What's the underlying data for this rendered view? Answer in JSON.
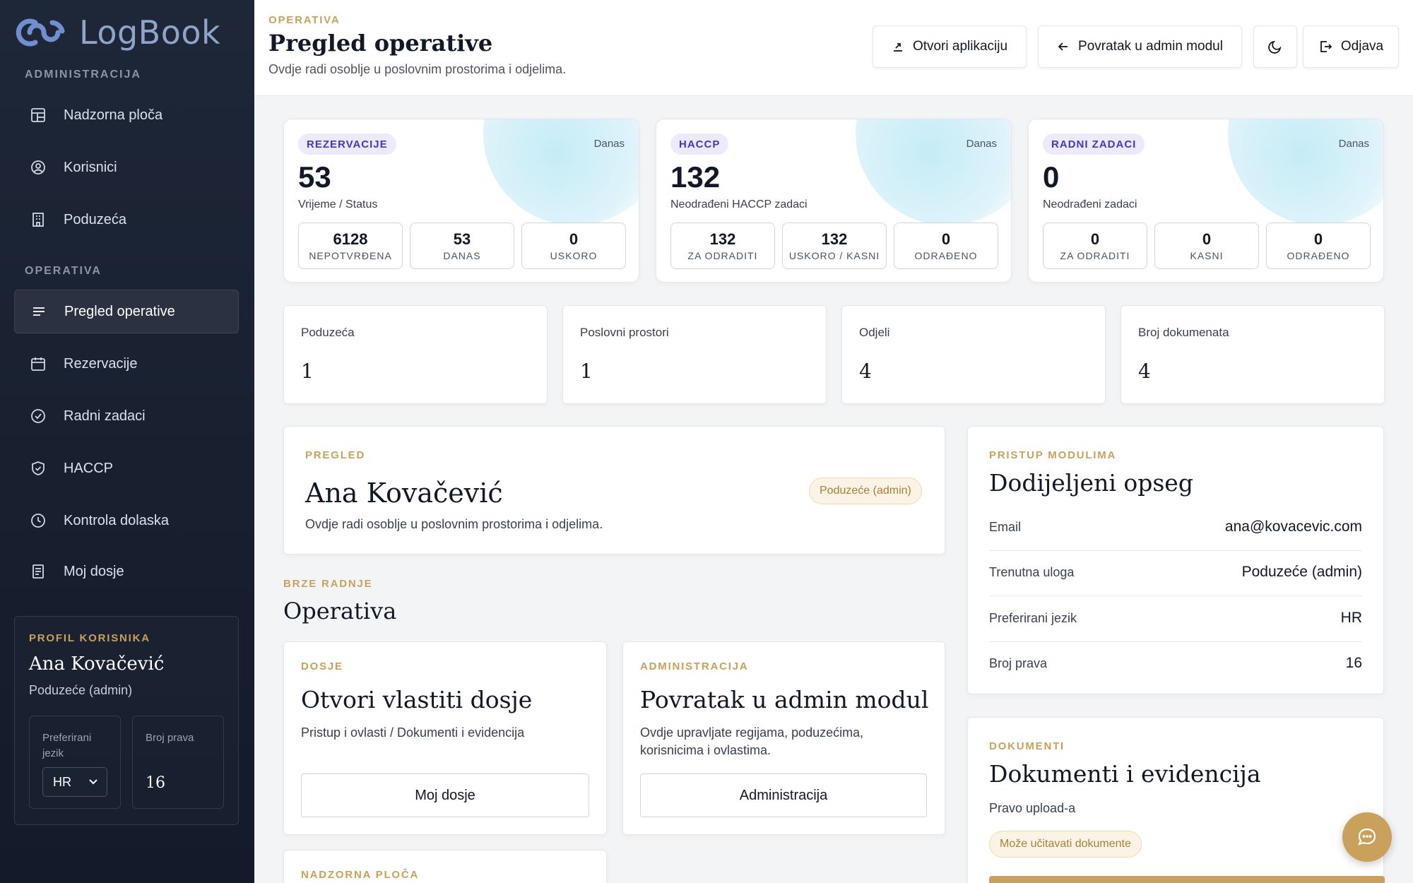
{
  "app": {
    "name": "LogBook"
  },
  "sidebar": {
    "section_admin": "ADMINISTRACIJA",
    "admin_items": [
      {
        "label": "Nadzorna ploča",
        "icon": "dashboard-icon"
      },
      {
        "label": "Korisnici",
        "icon": "user-circle-icon"
      },
      {
        "label": "Poduzeća",
        "icon": "building-icon"
      }
    ],
    "section_ops": "OPERATIVA",
    "ops_items": [
      {
        "label": "Pregled operative",
        "icon": "menu-lines-icon",
        "active": true
      },
      {
        "label": "Rezervacije",
        "icon": "calendar-icon"
      },
      {
        "label": "Radni zadaci",
        "icon": "check-circle-icon"
      },
      {
        "label": "HACCP",
        "icon": "shield-check-icon"
      },
      {
        "label": "Kontrola dolaska",
        "icon": "clock-icon"
      },
      {
        "label": "Moj dosje",
        "icon": "file-icon"
      }
    ],
    "profile": {
      "label": "PROFIL KORISNIKA",
      "name": "Ana Kovačević",
      "role": "Poduzeće (admin)",
      "lang_label": "Preferirani jezik",
      "lang_value": "HR",
      "rights_label": "Broj prava",
      "rights_value": "16"
    }
  },
  "header": {
    "kicker": "OPERATIVA",
    "title": "Pregled operative",
    "subtitle": "Ovdje radi osoblje u poslovnim prostorima i odjelima.",
    "btn_open_app": "Otvori aplikaciju",
    "btn_back_admin": "Povratak u admin modul",
    "btn_logout": "Odjava"
  },
  "stats": [
    {
      "badge": "REZERVACIJE",
      "when": "Danas",
      "value": "53",
      "desc": "Vrijeme / Status",
      "minis": [
        {
          "v": "6128",
          "l": "NEPOTVRĐENA"
        },
        {
          "v": "53",
          "l": "DANAS"
        },
        {
          "v": "0",
          "l": "USKORO"
        }
      ]
    },
    {
      "badge": "HACCP",
      "when": "Danas",
      "value": "132",
      "desc": "Neodrađeni HACCP zadaci",
      "minis": [
        {
          "v": "132",
          "l": "ZA ODRADITI"
        },
        {
          "v": "132",
          "l": "USKORO / KASNI"
        },
        {
          "v": "0",
          "l": "ODRAĐENO"
        }
      ]
    },
    {
      "badge": "RADNI ZADACI",
      "when": "Danas",
      "value": "0",
      "desc": "Neodrađeni zadaci",
      "minis": [
        {
          "v": "0",
          "l": "ZA ODRADITI"
        },
        {
          "v": "0",
          "l": "KASNI"
        },
        {
          "v": "0",
          "l": "ODRAĐENO"
        }
      ]
    }
  ],
  "counts": [
    {
      "label": "Poduzeća",
      "value": "1"
    },
    {
      "label": "Poslovni prostori",
      "value": "1"
    },
    {
      "label": "Odjeli",
      "value": "4"
    },
    {
      "label": "Broj dokumenata",
      "value": "4"
    }
  ],
  "overview": {
    "kicker": "PREGLED",
    "name": "Ana Kovačević",
    "text": "Ovdje radi osoblje u poslovnim prostorima i odjelima.",
    "badge": "Poduzeće (admin)"
  },
  "quick": {
    "kicker": "BRZE RADNJE",
    "title": "Operativa",
    "dosje": {
      "kicker": "DOSJE",
      "title": "Otvori vlastiti dosje",
      "text": "Pristup i ovlasti / Dokumenti i evidencija",
      "button": "Moj dosje"
    },
    "admin": {
      "kicker": "ADMINISTRACIJA",
      "title": "Povratak u admin modul",
      "text1": "Ovdje upravljate regijama, poduzećima,",
      "text2": "korisnicima i ovlastima.",
      "button": "Administracija"
    },
    "next_kicker": "NADZORNA PLOČA"
  },
  "scope": {
    "kicker": "PRISTUP MODULIMA",
    "title": "Dodijeljeni opseg",
    "rows": [
      {
        "k": "Email",
        "v": "ana@kovacevic.com"
      },
      {
        "k": "Trenutna uloga",
        "v": "Poduzeće (admin)"
      },
      {
        "k": "Preferirani jezik",
        "v": "HR"
      },
      {
        "k": "Broj prava",
        "v": "16"
      }
    ]
  },
  "docs": {
    "kicker": "DOKUMENTI",
    "title": "Dokumenti i evidencija",
    "text": "Pravo upload-a",
    "badge": "Može učitavati dokumente"
  },
  "colors": {
    "accent": "#c9a15a",
    "sidebar": "#1e2738",
    "badge_bg": "#ede9fe",
    "badge_text": "#4338ca"
  }
}
